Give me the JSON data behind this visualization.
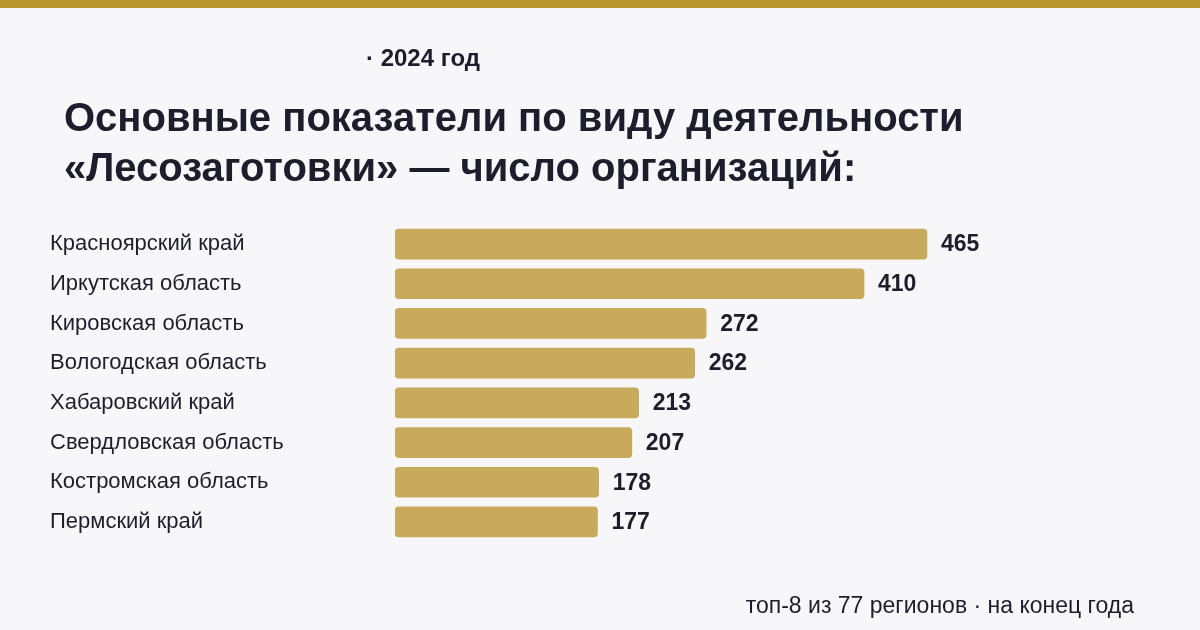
{
  "chart_data": {
    "type": "bar",
    "orientation": "horizontal",
    "subtitle": "· 2024 год",
    "title": "Основные показатели по виду деятельности «Лесозаготовки» — число организаций:",
    "categories": [
      "Красноярский край",
      "Иркутская область",
      "Кировская область",
      "Вологодская область",
      "Хабаровский край",
      "Свердловская область",
      "Костромская область",
      "Пермский край"
    ],
    "values": [
      465,
      410,
      272,
      262,
      213,
      207,
      178,
      177
    ],
    "color": "#c8aa5c",
    "data_labels": true,
    "annotations": [
      "топ-8 из 77 регионов · на конец года"
    ]
  }
}
